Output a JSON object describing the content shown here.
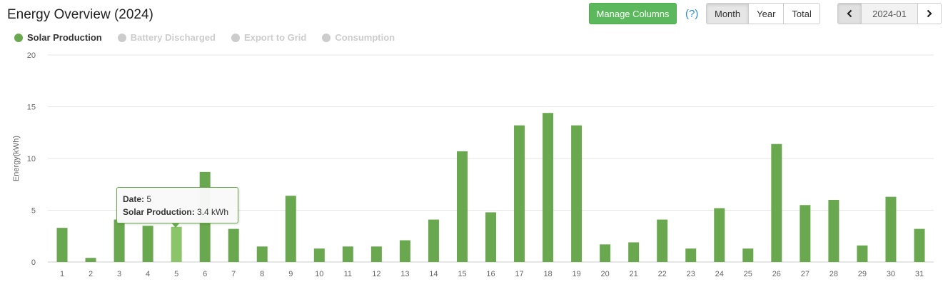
{
  "header": {
    "title": "Energy Overview (2024)"
  },
  "toolbar": {
    "manage_columns_label": "Manage Columns",
    "help_label": "(?)",
    "range_tabs": [
      {
        "label": "Month",
        "active": true
      },
      {
        "label": "Year",
        "active": false
      },
      {
        "label": "Total",
        "active": false
      }
    ],
    "date_value": "2024-01"
  },
  "legend": [
    {
      "label": "Solar Production",
      "color": "#6aa84f",
      "active": true
    },
    {
      "label": "Battery Discharged",
      "color": "#cccccc",
      "active": false
    },
    {
      "label": "Export to Grid",
      "color": "#cccccc",
      "active": false
    },
    {
      "label": "Consumption",
      "color": "#cccccc",
      "active": false
    }
  ],
  "tooltip": {
    "date_label": "Date",
    "date_value": "5",
    "series_label": "Solar Production",
    "series_value": "3.4 kWh"
  },
  "chart_data": {
    "type": "bar",
    "title": "",
    "xlabel": "",
    "ylabel": "Energy(kWh)",
    "ylim": [
      0,
      20
    ],
    "yticks": [
      0,
      5,
      10,
      15,
      20
    ],
    "grid": true,
    "legend_position": "top-left",
    "categories": [
      "1",
      "2",
      "3",
      "4",
      "5",
      "6",
      "7",
      "8",
      "9",
      "10",
      "11",
      "12",
      "13",
      "14",
      "15",
      "16",
      "17",
      "18",
      "19",
      "20",
      "21",
      "22",
      "23",
      "24",
      "25",
      "26",
      "27",
      "28",
      "29",
      "30",
      "31"
    ],
    "series": [
      {
        "name": "Solar Production",
        "color": "#6aa84f",
        "highlight_color": "#8cc46a",
        "highlight_index": 4,
        "values": [
          3.3,
          0.4,
          4.1,
          3.5,
          3.4,
          8.7,
          3.2,
          1.5,
          6.4,
          1.3,
          1.5,
          1.5,
          2.1,
          4.1,
          10.7,
          4.8,
          13.2,
          14.4,
          13.2,
          1.7,
          1.9,
          4.1,
          1.3,
          5.2,
          1.3,
          11.4,
          5.5,
          6.0,
          1.6,
          6.3,
          3.2
        ]
      }
    ]
  }
}
